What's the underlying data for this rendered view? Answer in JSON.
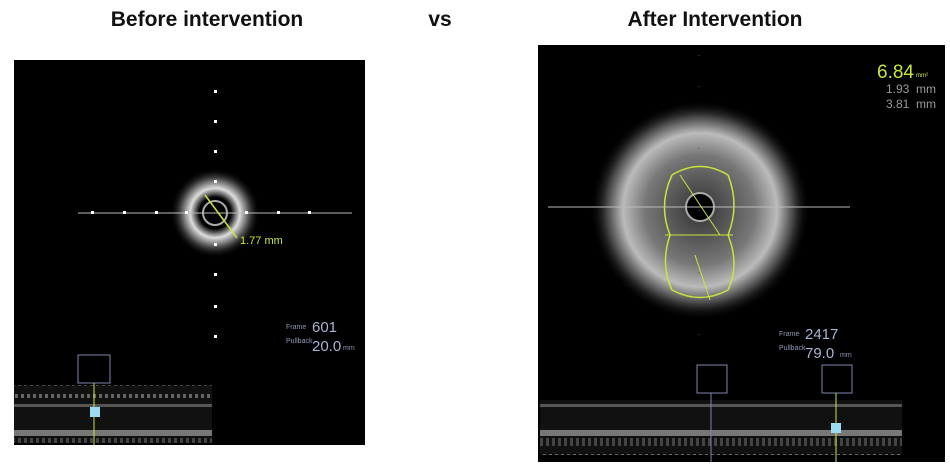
{
  "header": {
    "left_title": "Before intervention",
    "separator": "vs",
    "right_title": "After Intervention"
  },
  "before": {
    "measurement": "1.77 mm",
    "frame_label": "Frame",
    "frame": "601",
    "pullback_label": "Pullback",
    "pullback": "20.0",
    "pullback_unit": "mm"
  },
  "after": {
    "area": "6.84",
    "area_unit": "mm²",
    "min_diameter": "1.93",
    "max_diameter": "3.81",
    "diameter_unit": "mm",
    "frame_label": "Frame",
    "frame": "2417",
    "pullback_label": "Pullback",
    "pullback": "79.0",
    "pullback_unit": "mm"
  }
}
